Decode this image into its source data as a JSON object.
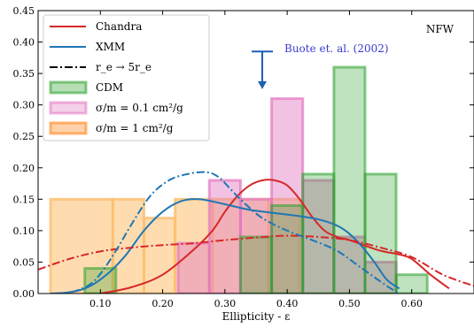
{
  "chart_data": {
    "type": "area",
    "xlabel": "Ellipticity - ε",
    "ylabel": "",
    "xlim": [
      0.0,
      0.7
    ],
    "ylim": [
      0.0,
      0.45
    ],
    "x_ticks": [
      0.1,
      0.2,
      0.3,
      0.4,
      0.5,
      0.6
    ],
    "x_tick_labels": [
      "0.10",
      "0.20",
      "0.30",
      "0.40",
      "0.50",
      "0.60"
    ],
    "y_ticks": [
      0.0,
      0.05,
      0.1,
      0.15,
      0.2,
      0.25,
      0.3,
      0.35,
      0.4,
      0.45
    ],
    "y_tick_labels": [
      "0.00",
      "0.05",
      "0.10",
      "0.15",
      "0.20",
      "0.25",
      "0.30",
      "0.35",
      "0.40",
      "0.45"
    ],
    "grid": false,
    "legend_position": "top-left",
    "annotations": {
      "corner_label": "NFW",
      "buote_label": "Buote et. al. (2002)",
      "buote_x": 0.36,
      "buote_top_y": 0.385,
      "buote_bottom_y": 0.325
    },
    "legend": [
      {
        "key": "chandra",
        "label": "Chandra",
        "kind": "line",
        "color": "#d62728"
      },
      {
        "key": "xmm",
        "label": "XMM",
        "kind": "line",
        "color": "#1f77b4"
      },
      {
        "key": "re",
        "label": "r_e → 5r_e",
        "kind": "dashdot",
        "color": "#000000"
      },
      {
        "key": "cdm",
        "label": "CDM",
        "kind": "patch",
        "color": "#2ca02c"
      },
      {
        "key": "sidm01",
        "label": "σ/m = 0.1 cm²/g",
        "kind": "patch",
        "color": "#e377c2"
      },
      {
        "key": "sidm1",
        "label": "σ/m = 1 cm²/g",
        "kind": "patch",
        "color": "#ff7f0e"
      }
    ],
    "histograms": [
      {
        "name": "σ/m = 1 cm²/g",
        "color": "#fdbf6f",
        "edge": "#fdbf6f",
        "alpha": 0.55,
        "edges": [
          0.02,
          0.12,
          0.17,
          0.22,
          0.28,
          0.37,
          0.42
        ],
        "values": [
          0.15,
          0.15,
          0.12,
          0.15,
          0.15,
          0.15
        ]
      },
      {
        "name": "σ/m = 0.1 cm²/g",
        "color": "#e377c2",
        "edge": "#e377c2",
        "alpha": 0.45,
        "edges": [
          0.225,
          0.275,
          0.325,
          0.375,
          0.425,
          0.475,
          0.525,
          0.575
        ],
        "values": [
          0.08,
          0.18,
          0.15,
          0.31,
          0.18,
          0.09,
          0.05
        ]
      },
      {
        "name": "CDM",
        "color": "#2ca02c",
        "edge": "#2ca02c",
        "alpha": 0.3,
        "edges": [
          0.075,
          0.125,
          0.175,
          0.225,
          0.275,
          0.325,
          0.375,
          0.425,
          0.475,
          0.525,
          0.575,
          0.625
        ],
        "values": [
          0.04,
          0.0,
          0.0,
          0.0,
          0.0,
          0.09,
          0.14,
          0.19,
          0.36,
          0.19,
          0.03
        ]
      }
    ],
    "series": [
      {
        "name": "Chandra",
        "color": "#d62728",
        "style": "solid",
        "x": [
          0.1,
          0.15,
          0.2,
          0.25,
          0.28,
          0.3,
          0.32,
          0.34,
          0.36,
          0.38,
          0.4,
          0.42,
          0.44,
          0.46,
          0.48,
          0.5,
          0.52,
          0.55,
          0.58,
          0.6,
          0.63,
          0.66
        ],
        "y": [
          0.0,
          0.01,
          0.03,
          0.07,
          0.1,
          0.13,
          0.155,
          0.172,
          0.18,
          0.18,
          0.172,
          0.15,
          0.122,
          0.1,
          0.09,
          0.085,
          0.078,
          0.068,
          0.062,
          0.055,
          0.03,
          0.008
        ]
      },
      {
        "name": "XMM",
        "color": "#1f77b4",
        "style": "solid",
        "x": [
          0.02,
          0.05,
          0.08,
          0.11,
          0.14,
          0.17,
          0.2,
          0.23,
          0.26,
          0.3,
          0.34,
          0.38,
          0.42,
          0.45,
          0.48,
          0.5,
          0.52,
          0.54,
          0.56,
          0.58
        ],
        "y": [
          0.0,
          0.002,
          0.01,
          0.03,
          0.06,
          0.1,
          0.13,
          0.147,
          0.15,
          0.142,
          0.133,
          0.128,
          0.123,
          0.118,
          0.108,
          0.095,
          0.075,
          0.05,
          0.022,
          0.008
        ]
      },
      {
        "name": "Chandra r_e → 5r_e",
        "color": "#d62728",
        "style": "dashdot",
        "x": [
          0.0,
          0.05,
          0.1,
          0.15,
          0.2,
          0.25,
          0.3,
          0.35,
          0.4,
          0.45,
          0.5,
          0.55,
          0.6,
          0.65,
          0.7
        ],
        "y": [
          0.038,
          0.055,
          0.067,
          0.073,
          0.077,
          0.08,
          0.085,
          0.089,
          0.092,
          0.09,
          0.085,
          0.073,
          0.058,
          0.03,
          0.012
        ]
      },
      {
        "name": "XMM r_e → 5r_e",
        "color": "#1f77b4",
        "style": "dashdot",
        "x": [
          0.03,
          0.06,
          0.09,
          0.12,
          0.15,
          0.18,
          0.21,
          0.24,
          0.27,
          0.29,
          0.31,
          0.33,
          0.36,
          0.4,
          0.44,
          0.48,
          0.52,
          0.56,
          0.58
        ],
        "y": [
          0.0,
          0.004,
          0.02,
          0.06,
          0.11,
          0.155,
          0.18,
          0.19,
          0.193,
          0.185,
          0.165,
          0.145,
          0.12,
          0.1,
          0.085,
          0.068,
          0.04,
          0.012,
          0.0
        ]
      }
    ]
  }
}
